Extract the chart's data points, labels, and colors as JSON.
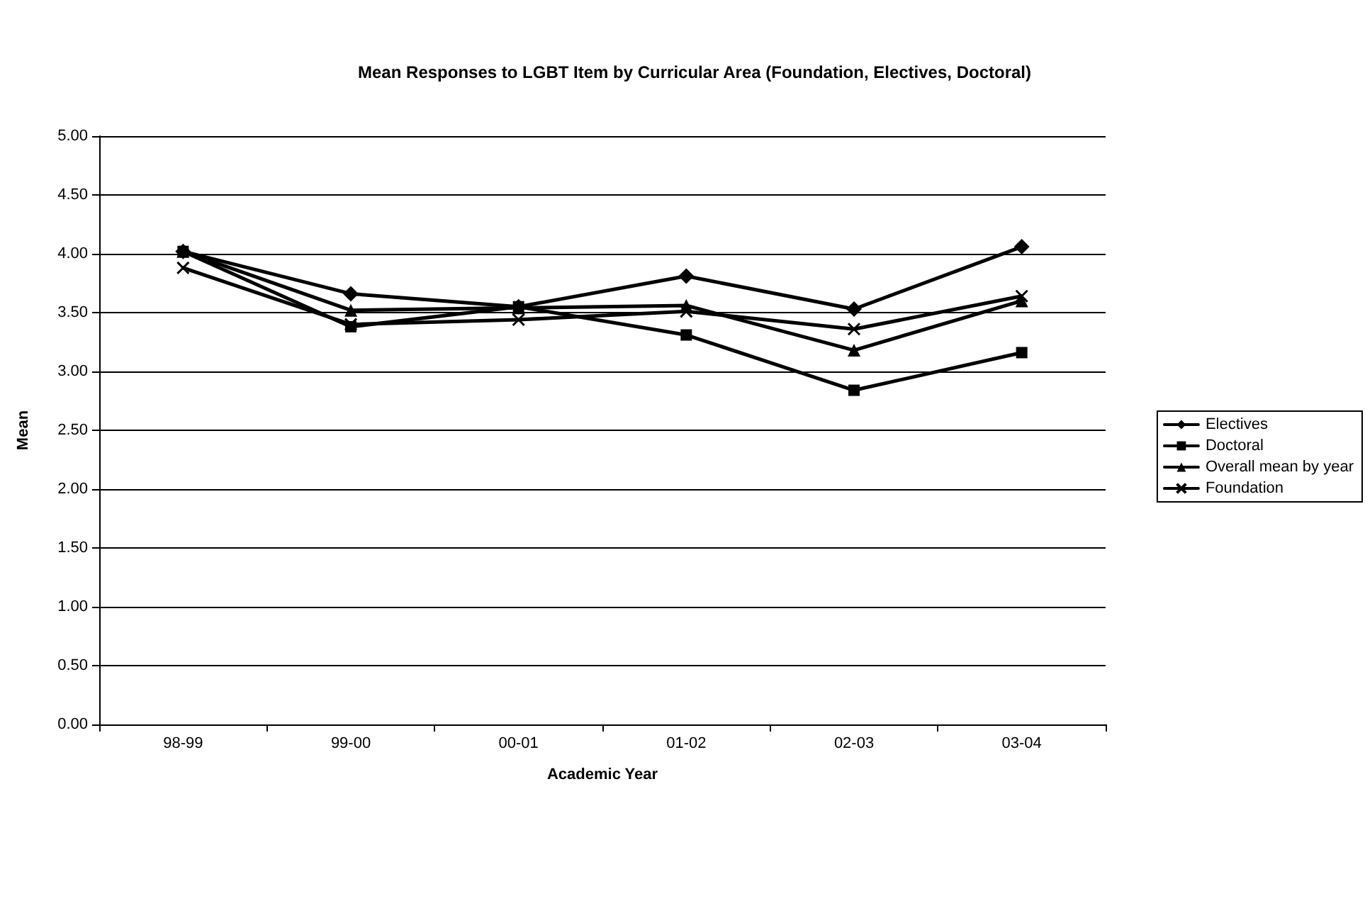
{
  "chart_data": {
    "type": "line",
    "title": "Mean Responses to LGBT Item by Curricular Area (Foundation, Electives, Doctoral)",
    "xlabel": "Academic Year",
    "ylabel": "Mean",
    "categories": [
      "98-99",
      "99-00",
      "00-01",
      "01-02",
      "02-03",
      "03-04"
    ],
    "series": [
      {
        "name": "Electives",
        "color": "#000000",
        "marker": "diamond",
        "values": [
          4.02,
          3.66,
          3.55,
          3.81,
          3.53,
          4.06
        ]
      },
      {
        "name": "Doctoral",
        "color": "#000000",
        "marker": "square",
        "values": [
          4.02,
          3.38,
          3.55,
          3.31,
          2.84,
          3.16
        ]
      },
      {
        "name": "Overall mean by year",
        "color": "#000000",
        "marker": "triangle",
        "values": [
          4.02,
          3.52,
          3.54,
          3.56,
          3.18,
          3.6
        ]
      },
      {
        "name": "Foundation",
        "color": "#000000",
        "marker": "cross",
        "values": [
          3.88,
          3.4,
          3.44,
          3.51,
          3.36,
          3.64
        ]
      }
    ],
    "ylim": [
      0,
      5
    ],
    "yticks": [
      {
        "value": 0,
        "label": "0.00"
      },
      {
        "value": 0.5,
        "label": "0.50"
      },
      {
        "value": 1,
        "label": "1.00"
      },
      {
        "value": 1.5,
        "label": "1.50"
      },
      {
        "value": 2,
        "label": "2.00"
      },
      {
        "value": 2.5,
        "label": "2.50"
      },
      {
        "value": 3,
        "label": "3.00"
      },
      {
        "value": 3.5,
        "label": "3.50"
      },
      {
        "value": 4,
        "label": "4.00"
      },
      {
        "value": 4.5,
        "label": "4.50"
      },
      {
        "value": 5,
        "label": "5.00"
      }
    ],
    "grid": "y",
    "legend": "right",
    "line_style": "solid"
  }
}
